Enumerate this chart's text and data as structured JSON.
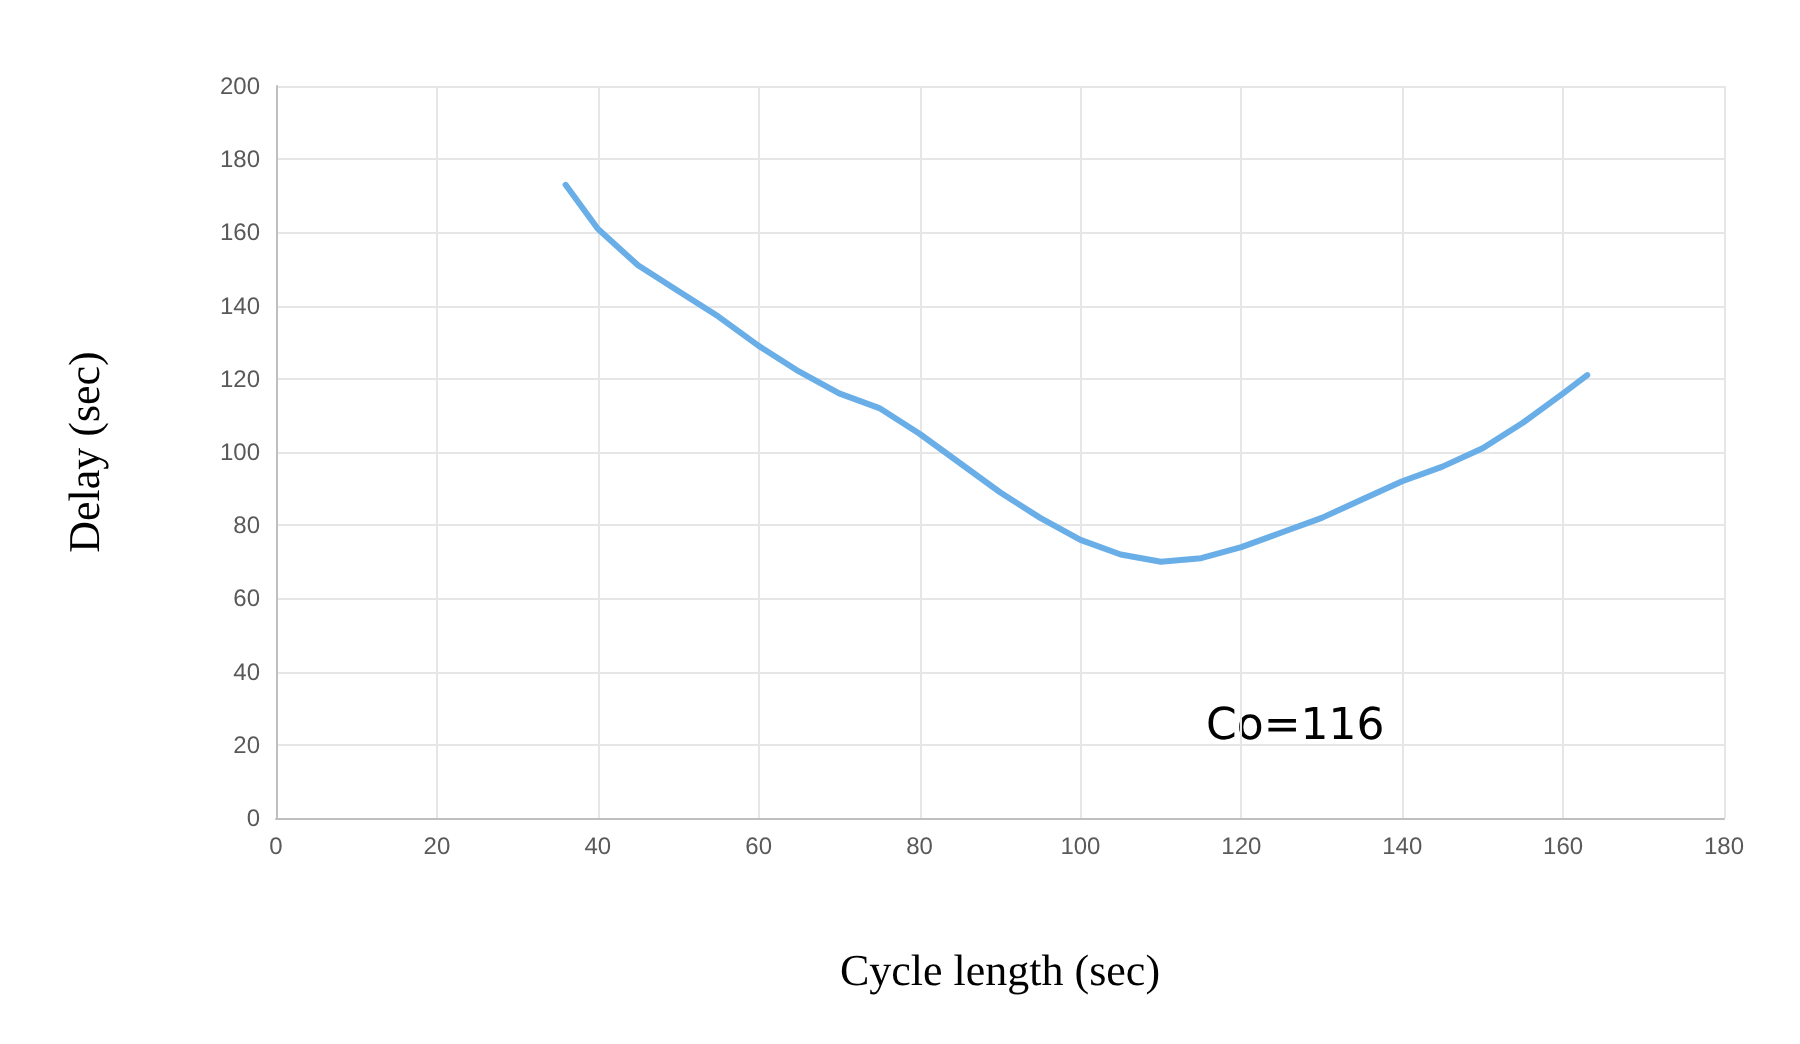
{
  "chart_data": {
    "type": "line",
    "xlabel": "Cycle length (sec)",
    "ylabel": "Delay (sec)",
    "annotations": [
      "Co=116"
    ],
    "x": [
      36,
      40,
      45,
      50,
      55,
      60,
      65,
      70,
      75,
      80,
      85,
      90,
      95,
      100,
      105,
      110,
      115,
      120,
      125,
      130,
      135,
      140,
      145,
      150,
      155,
      160,
      163
    ],
    "series": [
      {
        "color": "#6aaee8",
        "values": [
          173,
          161,
          151,
          144,
          137,
          129,
          122,
          116,
          112,
          105,
          97,
          89,
          82,
          76,
          72,
          70,
          71,
          74,
          78,
          82,
          87,
          92,
          96,
          101,
          108,
          116,
          121
        ]
      }
    ],
    "xlim": [
      0,
      180
    ],
    "xticks": [
      0,
      20,
      40,
      60,
      80,
      100,
      120,
      140,
      160,
      180
    ],
    "ylim": [
      0,
      200
    ],
    "yticks": [
      0,
      20,
      40,
      60,
      80,
      100,
      120,
      140,
      160,
      180,
      200
    ],
    "grid": true,
    "marker": "none",
    "line_style": "solid"
  }
}
